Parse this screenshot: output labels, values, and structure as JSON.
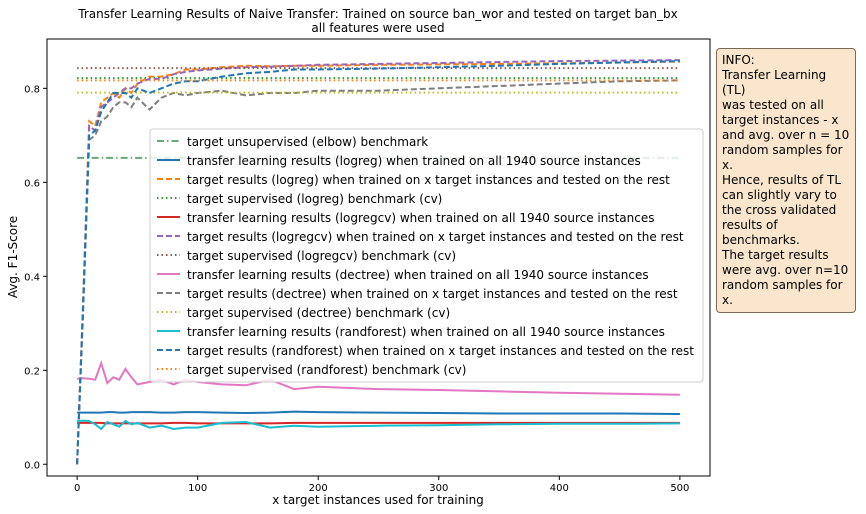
{
  "chart_data": {
    "type": "line",
    "title_line1": "Transfer Learning Results of Naive Transfer: Trained on source ban_wor and tested on target ban_bx",
    "title_line2": "all features were used",
    "xlabel": "x target instances used for training",
    "ylabel": "Avg. F1-Score",
    "xlim": [
      -25,
      525
    ],
    "ylim": [
      -0.025,
      0.905
    ],
    "xticks": [
      0,
      100,
      200,
      300,
      400,
      500
    ],
    "yticks": [
      0.0,
      0.2,
      0.4,
      0.6,
      0.8
    ],
    "xtick_labels": [
      "0",
      "100",
      "200",
      "300",
      "400",
      "500"
    ],
    "ytick_labels": [
      "0.0",
      "0.2",
      "0.4",
      "0.6",
      "0.8"
    ],
    "legend_position": "center-right",
    "x": [
      0,
      5,
      10,
      15,
      20,
      25,
      30,
      35,
      40,
      45,
      50,
      60,
      70,
      80,
      90,
      100,
      120,
      140,
      160,
      180,
      200,
      250,
      300,
      350,
      400,
      450,
      500
    ],
    "series": [
      {
        "name": "target unsupervised (elbow) benchmark",
        "color": "#66aa77",
        "dash": "dashdot",
        "constant": 0.652
      },
      {
        "name": "transfer learning results (logreg) when trained on all 1940 source instances",
        "color": "#1f77b4",
        "dash": "solid",
        "values": [
          0.11,
          0.11,
          0.11,
          0.11,
          0.11,
          0.111,
          0.111,
          0.11,
          0.11,
          0.111,
          0.111,
          0.111,
          0.11,
          0.11,
          0.111,
          0.111,
          0.11,
          0.109,
          0.11,
          0.112,
          0.111,
          0.11,
          0.109,
          0.108,
          0.108,
          0.108,
          0.107
        ]
      },
      {
        "name": "target results (logreg) when trained on x target instances and tested on the rest",
        "color": "#ff7f0e",
        "dash": "dashed",
        "values": [
          0.0,
          0.35,
          0.73,
          0.72,
          0.77,
          0.78,
          0.79,
          0.78,
          0.8,
          0.79,
          0.81,
          0.825,
          0.825,
          0.83,
          0.84,
          0.84,
          0.845,
          0.848,
          0.847,
          0.848,
          0.848,
          0.85,
          0.851,
          0.852,
          0.853,
          0.855,
          0.857
        ]
      },
      {
        "name": "target supervised (logreg) benchmark (cv)",
        "color": "#2ca02c",
        "dash": "dotted",
        "constant": 0.822
      },
      {
        "name": "transfer learning results (logregcv) when trained on all 1940 source instances",
        "color": "#d62728",
        "dash": "solid",
        "values": [
          0.088,
          0.088,
          0.088,
          0.088,
          0.088,
          0.087,
          0.087,
          0.087,
          0.087,
          0.087,
          0.087,
          0.087,
          0.087,
          0.088,
          0.088,
          0.087,
          0.087,
          0.087,
          0.087,
          0.088,
          0.088,
          0.088,
          0.088,
          0.088,
          0.088,
          0.088,
          0.088
        ]
      },
      {
        "name": "target results (logregcv) when trained on x target instances and tested on the rest",
        "color": "#9467bd",
        "dash": "dashed",
        "values": [
          0.0,
          0.35,
          0.72,
          0.71,
          0.76,
          0.77,
          0.78,
          0.79,
          0.8,
          0.8,
          0.81,
          0.82,
          0.82,
          0.83,
          0.835,
          0.838,
          0.842,
          0.845,
          0.846,
          0.848,
          0.85,
          0.852,
          0.854,
          0.856,
          0.858,
          0.859,
          0.86
        ]
      },
      {
        "name": "target supervised (logregcv) benchmark (cv)",
        "color": "#8c564b",
        "dash": "dotted",
        "constant": 0.843
      },
      {
        "name": "transfer learning results (dectree) when trained on all 1940 source instances",
        "color": "#e377c2",
        "dash": "solid",
        "values": [
          0.182,
          0.183,
          0.182,
          0.18,
          0.215,
          0.173,
          0.185,
          0.18,
          0.203,
          0.185,
          0.17,
          0.175,
          0.18,
          0.17,
          0.18,
          0.175,
          0.17,
          0.168,
          0.18,
          0.16,
          0.165,
          0.16,
          0.158,
          0.155,
          0.152,
          0.15,
          0.148
        ]
      },
      {
        "name": "target results (dectree) when trained on x target instances and tested on the rest",
        "color": "#7f7f7f",
        "dash": "dashed",
        "values": [
          0.0,
          0.33,
          0.69,
          0.7,
          0.73,
          0.74,
          0.76,
          0.77,
          0.77,
          0.76,
          0.78,
          0.755,
          0.78,
          0.79,
          0.785,
          0.79,
          0.795,
          0.785,
          0.79,
          0.79,
          0.795,
          0.795,
          0.8,
          0.805,
          0.81,
          0.815,
          0.817
        ]
      },
      {
        "name": "target supervised (dectree) benchmark (cv)",
        "color": "#bcbd22",
        "dash": "dotted",
        "constant": 0.791
      },
      {
        "name": "transfer learning results (randforest) when trained on all 1940 source instances",
        "color": "#17becf",
        "dash": "solid",
        "values": [
          0.092,
          0.093,
          0.092,
          0.085,
          0.075,
          0.09,
          0.085,
          0.08,
          0.092,
          0.085,
          0.088,
          0.078,
          0.082,
          0.075,
          0.078,
          0.078,
          0.088,
          0.09,
          0.078,
          0.082,
          0.08,
          0.082,
          0.083,
          0.085,
          0.086,
          0.086,
          0.087
        ]
      },
      {
        "name": "target results (randforest) when trained on x target instances and tested on the rest",
        "color": "#1f77b4",
        "dash": "dashed",
        "values": [
          0.0,
          0.34,
          0.7,
          0.71,
          0.75,
          0.77,
          0.79,
          0.79,
          0.79,
          0.78,
          0.8,
          0.79,
          0.8,
          0.81,
          0.815,
          0.815,
          0.825,
          0.832,
          0.835,
          0.84,
          0.84,
          0.842,
          0.845,
          0.848,
          0.852,
          0.855,
          0.858
        ]
      },
      {
        "name": "target supervised (randforest) benchmark (cv)",
        "color": "#ff7f0e",
        "dash": "dotted",
        "constant": 0.817
      }
    ]
  },
  "info_box": {
    "text": "INFO:\nTransfer Learning (TL)\nwas tested on all\ntarget instances - x\nand avg. over n = 10\nrandom samples for x.\nHence, results of TL\ncan slightly vary to\nthe cross validated\nresults of benchmarks.\nThe target results\nwere avg. over n=10\nrandom samples for x."
  }
}
